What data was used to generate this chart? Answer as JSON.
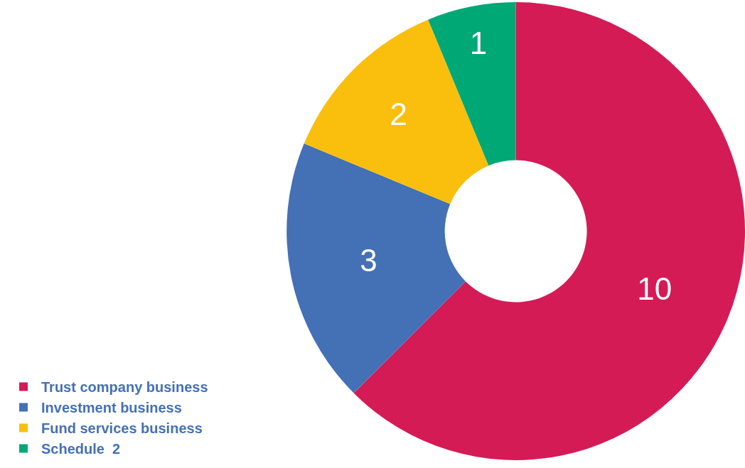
{
  "chart_data": {
    "type": "donut",
    "categories": [
      "Trust company business",
      "Investment business",
      "Fund services business",
      "Schedule  2"
    ],
    "values": [
      10,
      3,
      2,
      1
    ],
    "colors": [
      "#d41b56",
      "#4470b5",
      "#f9bf0c",
      "#00a875"
    ],
    "data_labels": true,
    "legend": "bottom left"
  }
}
